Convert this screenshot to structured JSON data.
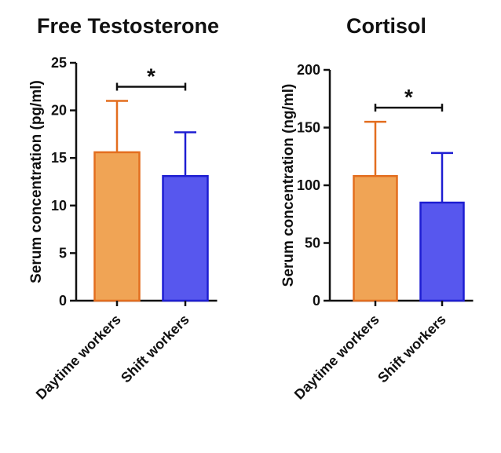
{
  "chart_data": [
    {
      "type": "bar",
      "title": "Free Testosterone",
      "xlabel": "",
      "ylabel": "Serum concentration (pg/ml)",
      "ylim": [
        0,
        25
      ],
      "yticks": [
        0,
        5,
        10,
        15,
        20,
        25
      ],
      "categories": [
        "Daytime workers",
        "Shift workers"
      ],
      "values": [
        15.6,
        13.1
      ],
      "error_upper": [
        5.4,
        4.6
      ],
      "colors": [
        "#f0a455",
        "#5757ee"
      ],
      "edge_colors": [
        "#e36e1f",
        "#1e1ed2"
      ],
      "significance": {
        "between": [
          0,
          1
        ],
        "label": "*"
      }
    },
    {
      "type": "bar",
      "title": "Cortisol",
      "xlabel": "",
      "ylabel": "Serum concentration (ng/ml)",
      "ylim": [
        0,
        200
      ],
      "yticks": [
        0,
        50,
        100,
        150,
        200
      ],
      "categories": [
        "Daytime workers",
        "Shift workers"
      ],
      "values": [
        108,
        85
      ],
      "error_upper": [
        47,
        43
      ],
      "colors": [
        "#f0a455",
        "#5757ee"
      ],
      "edge_colors": [
        "#e36e1f",
        "#1e1ed2"
      ],
      "significance": {
        "between": [
          0,
          1
        ],
        "label": "*"
      }
    }
  ]
}
